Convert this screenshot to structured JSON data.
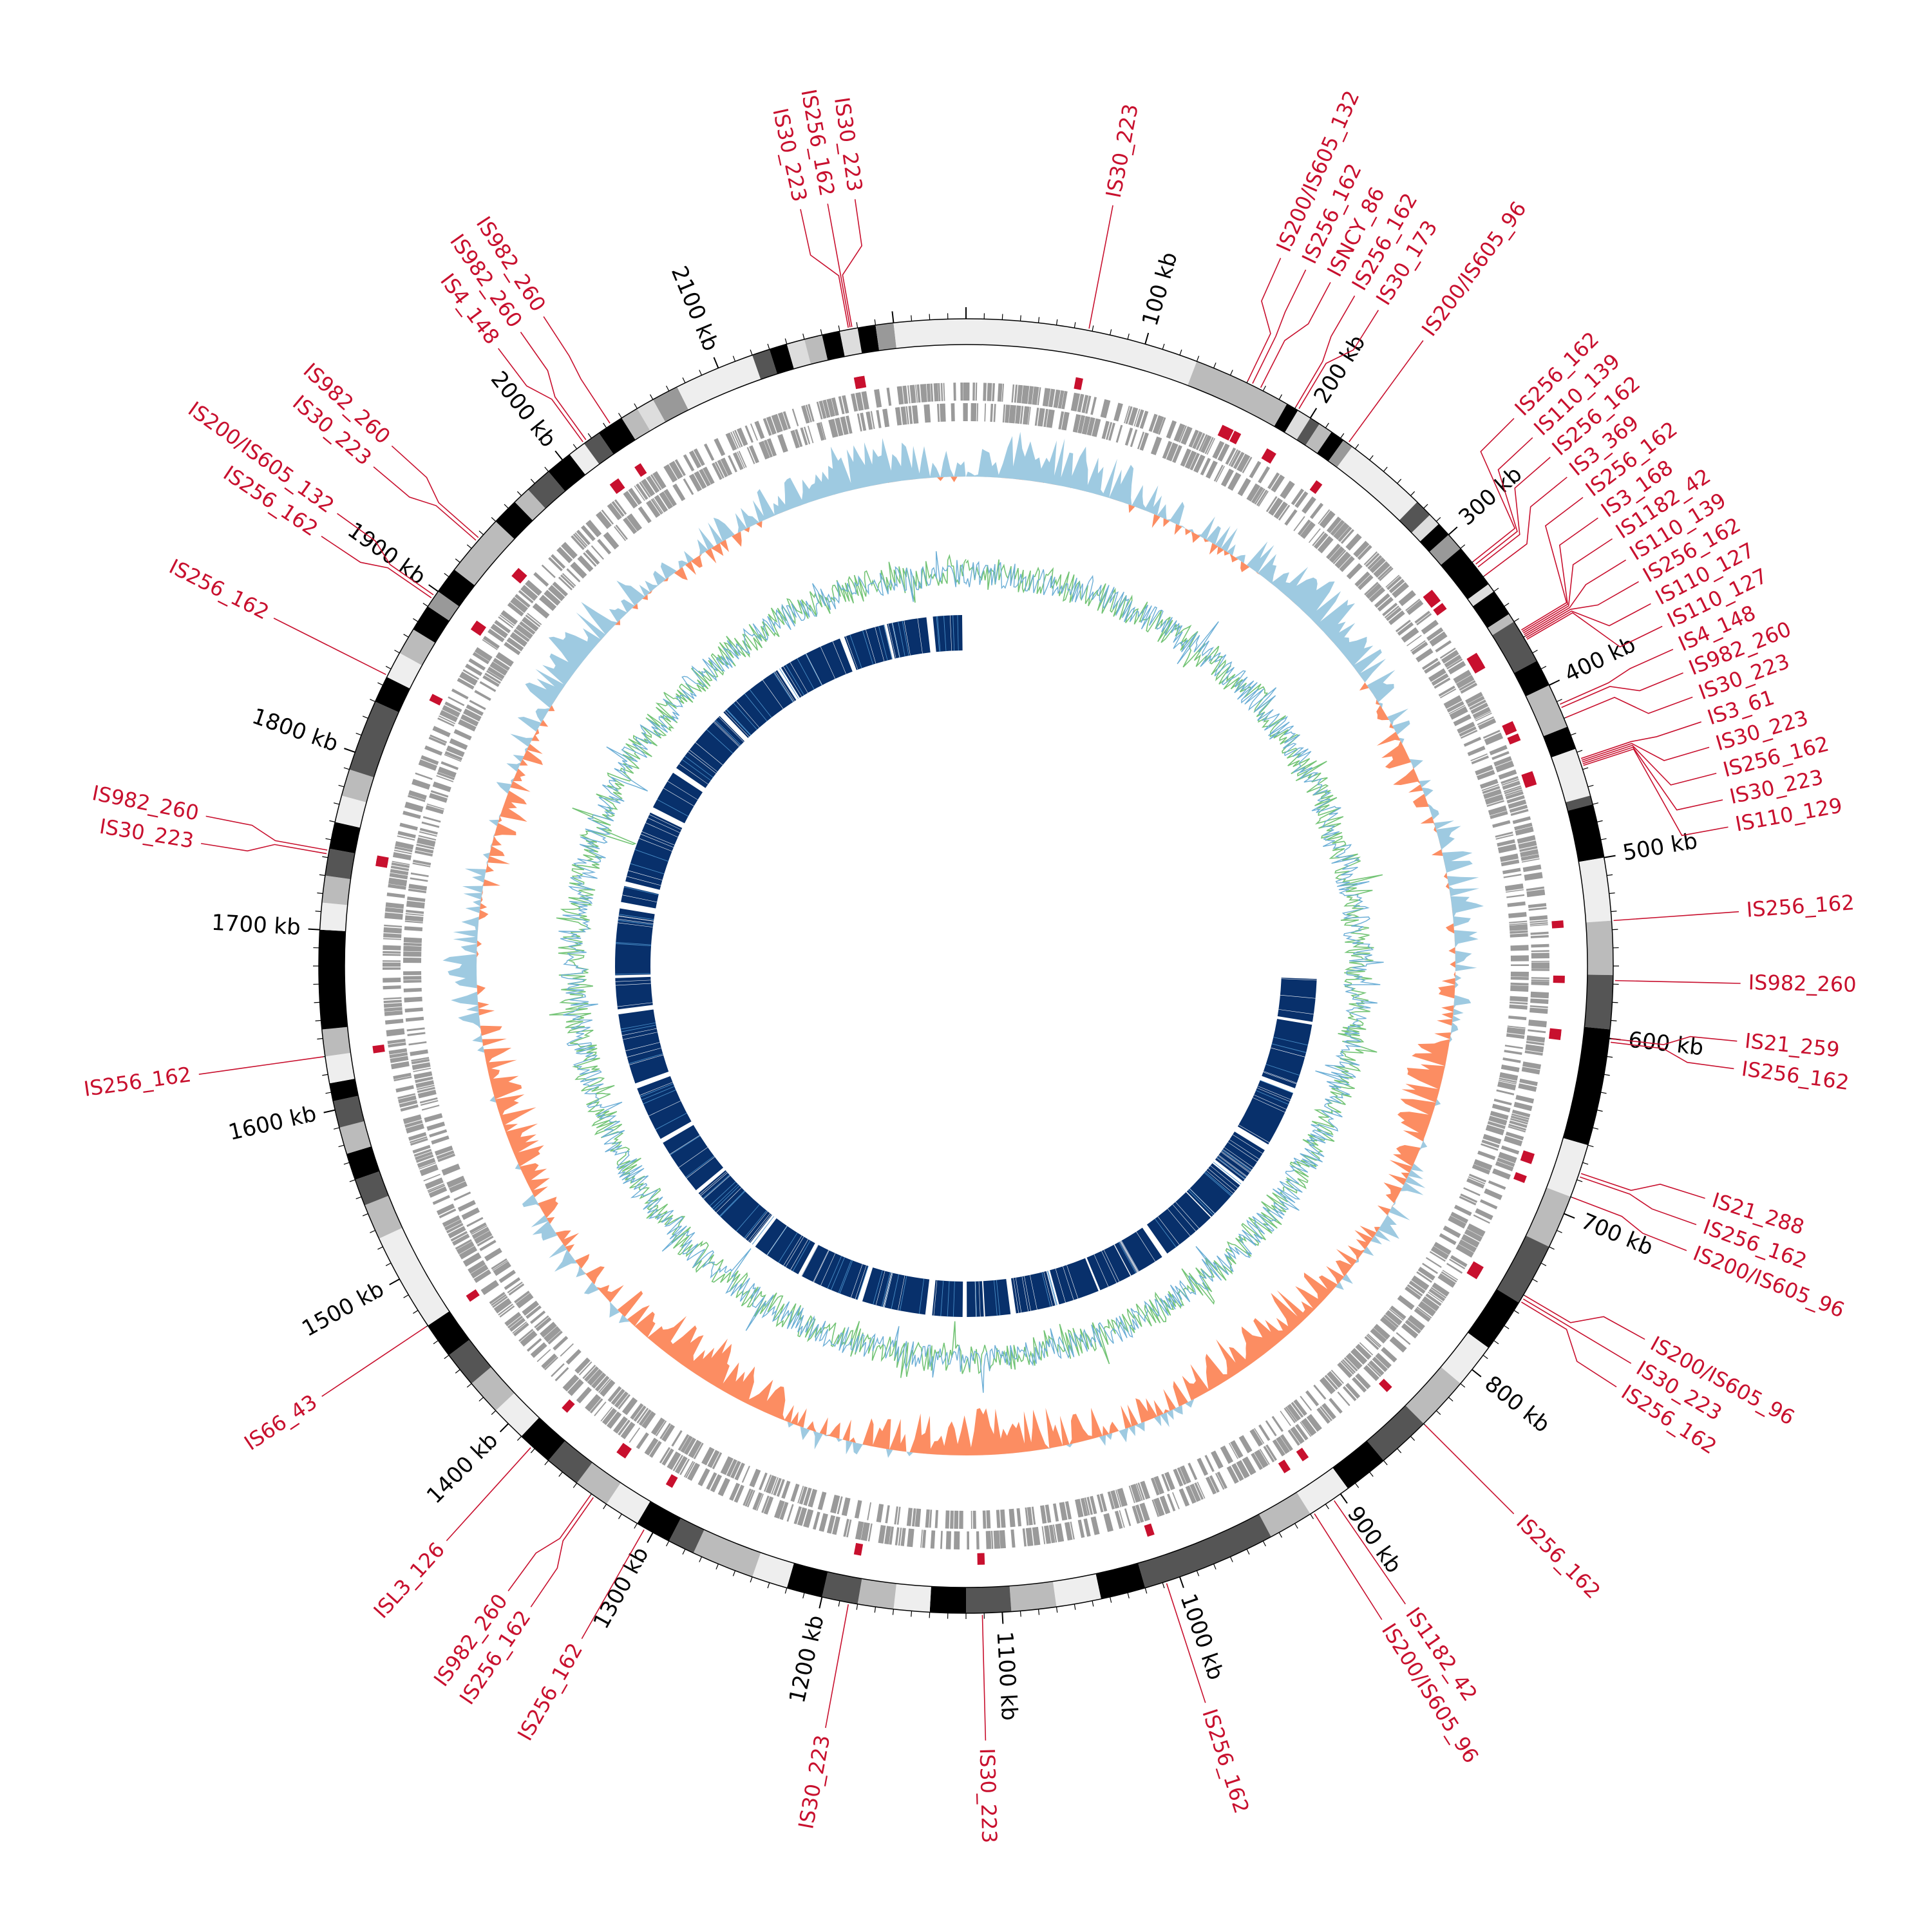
{
  "genome": {
    "length_kb": 2240,
    "ideogram_bands": [
      {
        "start": 0,
        "end": 130,
        "shade": "#eeeeee"
      },
      {
        "start": 130,
        "end": 185,
        "shade": "#bbbbbb"
      },
      {
        "start": 185,
        "end": 192,
        "shade": "#000000"
      },
      {
        "start": 192,
        "end": 200,
        "shade": "#dddddd"
      },
      {
        "start": 200,
        "end": 206,
        "shade": "#555555"
      },
      {
        "start": 206,
        "end": 214,
        "shade": "#bbbbbb"
      },
      {
        "start": 214,
        "end": 222,
        "shade": "#000000"
      },
      {
        "start": 222,
        "end": 228,
        "shade": "#999999"
      },
      {
        "start": 228,
        "end": 275,
        "shade": "#eeeeee"
      },
      {
        "start": 275,
        "end": 285,
        "shade": "#555555"
      },
      {
        "start": 285,
        "end": 292,
        "shade": "#dddddd"
      },
      {
        "start": 292,
        "end": 300,
        "shade": "#000000"
      },
      {
        "start": 300,
        "end": 310,
        "shade": "#999999"
      },
      {
        "start": 310,
        "end": 335,
        "shade": "#000000"
      },
      {
        "start": 335,
        "end": 340,
        "shade": "#dddddd"
      },
      {
        "start": 340,
        "end": 355,
        "shade": "#000000"
      },
      {
        "start": 355,
        "end": 360,
        "shade": "#bbbbbb"
      },
      {
        "start": 360,
        "end": 385,
        "shade": "#555555"
      },
      {
        "start": 385,
        "end": 400,
        "shade": "#000000"
      },
      {
        "start": 400,
        "end": 425,
        "shade": "#bbbbbb"
      },
      {
        "start": 425,
        "end": 438,
        "shade": "#000000"
      },
      {
        "start": 438,
        "end": 465,
        "shade": "#eeeeee"
      },
      {
        "start": 465,
        "end": 470,
        "shade": "#555555"
      },
      {
        "start": 470,
        "end": 500,
        "shade": "#000000"
      },
      {
        "start": 500,
        "end": 535,
        "shade": "#eeeeee"
      },
      {
        "start": 535,
        "end": 565,
        "shade": "#bbbbbb"
      },
      {
        "start": 565,
        "end": 595,
        "shade": "#555555"
      },
      {
        "start": 595,
        "end": 660,
        "shade": "#000000"
      },
      {
        "start": 660,
        "end": 690,
        "shade": "#eeeeee"
      },
      {
        "start": 690,
        "end": 720,
        "shade": "#bbbbbb"
      },
      {
        "start": 720,
        "end": 755,
        "shade": "#555555"
      },
      {
        "start": 755,
        "end": 785,
        "shade": "#000000"
      },
      {
        "start": 785,
        "end": 810,
        "shade": "#eeeeee"
      },
      {
        "start": 810,
        "end": 840,
        "shade": "#bbbbbb"
      },
      {
        "start": 840,
        "end": 870,
        "shade": "#555555"
      },
      {
        "start": 870,
        "end": 895,
        "shade": "#000000"
      },
      {
        "start": 895,
        "end": 920,
        "shade": "#eeeeee"
      },
      {
        "start": 920,
        "end": 945,
        "shade": "#bbbbbb"
      },
      {
        "start": 945,
        "end": 1020,
        "shade": "#555555"
      },
      {
        "start": 1020,
        "end": 1045,
        "shade": "#000000"
      },
      {
        "start": 1045,
        "end": 1070,
        "shade": "#eeeeee"
      },
      {
        "start": 1070,
        "end": 1095,
        "shade": "#bbbbbb"
      },
      {
        "start": 1095,
        "end": 1120,
        "shade": "#555555"
      },
      {
        "start": 1120,
        "end": 1140,
        "shade": "#000000"
      },
      {
        "start": 1140,
        "end": 1160,
        "shade": "#eeeeee"
      },
      {
        "start": 1160,
        "end": 1180,
        "shade": "#bbbbbb"
      },
      {
        "start": 1180,
        "end": 1200,
        "shade": "#555555"
      },
      {
        "start": 1200,
        "end": 1220,
        "shade": "#000000"
      },
      {
        "start": 1220,
        "end": 1240,
        "shade": "#eeeeee"
      },
      {
        "start": 1240,
        "end": 1275,
        "shade": "#bbbbbb"
      },
      {
        "start": 1275,
        "end": 1290,
        "shade": "#555555"
      },
      {
        "start": 1290,
        "end": 1310,
        "shade": "#000000"
      },
      {
        "start": 1310,
        "end": 1330,
        "shade": "#eeeeee"
      },
      {
        "start": 1330,
        "end": 1350,
        "shade": "#bbbbbb"
      },
      {
        "start": 1350,
        "end": 1370,
        "shade": "#555555"
      },
      {
        "start": 1370,
        "end": 1390,
        "shade": "#000000"
      },
      {
        "start": 1390,
        "end": 1410,
        "shade": "#eeeeee"
      },
      {
        "start": 1410,
        "end": 1430,
        "shade": "#bbbbbb"
      },
      {
        "start": 1430,
        "end": 1450,
        "shade": "#555555"
      },
      {
        "start": 1450,
        "end": 1470,
        "shade": "#000000"
      },
      {
        "start": 1470,
        "end": 1525,
        "shade": "#eeeeee"
      },
      {
        "start": 1525,
        "end": 1545,
        "shade": "#bbbbbb"
      },
      {
        "start": 1545,
        "end": 1560,
        "shade": "#555555"
      },
      {
        "start": 1560,
        "end": 1575,
        "shade": "#000000"
      },
      {
        "start": 1575,
        "end": 1590,
        "shade": "#bbbbbb"
      },
      {
        "start": 1590,
        "end": 1605,
        "shade": "#555555"
      },
      {
        "start": 1605,
        "end": 1615,
        "shade": "#000000"
      },
      {
        "start": 1615,
        "end": 1630,
        "shade": "#eeeeee"
      },
      {
        "start": 1630,
        "end": 1645,
        "shade": "#bbbbbb"
      },
      {
        "start": 1645,
        "end": 1700,
        "shade": "#000000"
      },
      {
        "start": 1700,
        "end": 1715,
        "shade": "#eeeeee"
      },
      {
        "start": 1715,
        "end": 1730,
        "shade": "#bbbbbb"
      },
      {
        "start": 1730,
        "end": 1745,
        "shade": "#555555"
      },
      {
        "start": 1745,
        "end": 1760,
        "shade": "#000000"
      },
      {
        "start": 1760,
        "end": 1775,
        "shade": "#eeeeee"
      },
      {
        "start": 1775,
        "end": 1790,
        "shade": "#bbbbbb"
      },
      {
        "start": 1790,
        "end": 1830,
        "shade": "#555555"
      },
      {
        "start": 1830,
        "end": 1845,
        "shade": "#000000"
      },
      {
        "start": 1845,
        "end": 1860,
        "shade": "#eeeeee"
      },
      {
        "start": 1860,
        "end": 1875,
        "shade": "#bbbbbb"
      },
      {
        "start": 1875,
        "end": 1890,
        "shade": "#000000"
      },
      {
        "start": 1890,
        "end": 1900,
        "shade": "#999999"
      },
      {
        "start": 1900,
        "end": 1915,
        "shade": "#000000"
      },
      {
        "start": 1915,
        "end": 1950,
        "shade": "#bbbbbb"
      },
      {
        "start": 1950,
        "end": 1965,
        "shade": "#000000"
      },
      {
        "start": 1965,
        "end": 1975,
        "shade": "#bbbbbb"
      },
      {
        "start": 1975,
        "end": 1990,
        "shade": "#555555"
      },
      {
        "start": 1990,
        "end": 2005,
        "shade": "#000000"
      },
      {
        "start": 2005,
        "end": 2015,
        "shade": "#eeeeee"
      },
      {
        "start": 2015,
        "end": 2025,
        "shade": "#555555"
      },
      {
        "start": 2025,
        "end": 2040,
        "shade": "#000000"
      },
      {
        "start": 2040,
        "end": 2050,
        "shade": "#bbbbbb"
      },
      {
        "start": 2050,
        "end": 2060,
        "shade": "#dddddd"
      },
      {
        "start": 2060,
        "end": 2075,
        "shade": "#999999"
      },
      {
        "start": 2075,
        "end": 2120,
        "shade": "#eeeeee"
      },
      {
        "start": 2120,
        "end": 2130,
        "shade": "#555555"
      },
      {
        "start": 2130,
        "end": 2140,
        "shade": "#000000"
      },
      {
        "start": 2140,
        "end": 2150,
        "shade": "#dddddd"
      },
      {
        "start": 2150,
        "end": 2160,
        "shade": "#bbbbbb"
      },
      {
        "start": 2160,
        "end": 2170,
        "shade": "#000000"
      },
      {
        "start": 2170,
        "end": 2180,
        "shade": "#dddddd"
      },
      {
        "start": 2180,
        "end": 2190,
        "shade": "#000000"
      },
      {
        "start": 2190,
        "end": 2200,
        "shade": "#999999"
      },
      {
        "start": 2200,
        "end": 2240,
        "shade": "#eeeeee"
      }
    ]
  },
  "scale_labels": [
    {
      "kb": 100,
      "text": "100 kb"
    },
    {
      "kb": 200,
      "text": "200 kb"
    },
    {
      "kb": 300,
      "text": "300 kb"
    },
    {
      "kb": 400,
      "text": "400 kb"
    },
    {
      "kb": 500,
      "text": "500 kb"
    },
    {
      "kb": 600,
      "text": "600 kb"
    },
    {
      "kb": 700,
      "text": "700 kb"
    },
    {
      "kb": 800,
      "text": "800 kb"
    },
    {
      "kb": 900,
      "text": "900 kb"
    },
    {
      "kb": 1000,
      "text": "1000 kb"
    },
    {
      "kb": 1100,
      "text": "1100 kb"
    },
    {
      "kb": 1200,
      "text": "1200 kb"
    },
    {
      "kb": 1300,
      "text": "1300 kb"
    },
    {
      "kb": 1400,
      "text": "1400 kb"
    },
    {
      "kb": 1500,
      "text": "1500 kb"
    },
    {
      "kb": 1600,
      "text": "1600 kb"
    },
    {
      "kb": 1700,
      "text": "1700 kb"
    },
    {
      "kb": 1800,
      "text": "1800 kb"
    },
    {
      "kb": 1900,
      "text": "1900 kb"
    },
    {
      "kb": 2000,
      "text": "2000 kb"
    },
    {
      "kb": 2100,
      "text": "2100 kb"
    }
  ],
  "insertion_sequences": [
    {
      "kb": 68,
      "label": "IS30_223"
    },
    {
      "kb": 160,
      "label": "IS200/IS605_132"
    },
    {
      "kb": 163,
      "label": "IS256_162"
    },
    {
      "kb": 168,
      "label": "ISNCY_86"
    },
    {
      "kb": 190,
      "label": "IS256_162"
    },
    {
      "kb": 192,
      "label": "IS30_173"
    },
    {
      "kb": 225,
      "label": "IS200/IS605_96"
    },
    {
      "kb": 320,
      "label": "IS256_162"
    },
    {
      "kb": 322,
      "label": "IS110_139"
    },
    {
      "kb": 324,
      "label": "IS256_162"
    },
    {
      "kb": 330,
      "label": "IS3_369"
    },
    {
      "kb": 366,
      "label": "IS256_162"
    },
    {
      "kb": 367,
      "label": "IS3_168"
    },
    {
      "kb": 368,
      "label": "IS1182_42"
    },
    {
      "kb": 369,
      "label": "IS110_139"
    },
    {
      "kb": 370,
      "label": "IS256_162"
    },
    {
      "kb": 371,
      "label": "IS110_127"
    },
    {
      "kb": 372,
      "label": "IS110_127"
    },
    {
      "kb": 412,
      "label": "IS4_148"
    },
    {
      "kb": 414,
      "label": "IS982_260"
    },
    {
      "kb": 420,
      "label": "IS30_223"
    },
    {
      "kb": 444,
      "label": "IS3_61"
    },
    {
      "kb": 445,
      "label": "IS30_223"
    },
    {
      "kb": 446,
      "label": "IS256_162"
    },
    {
      "kb": 447,
      "label": "IS30_223"
    },
    {
      "kb": 448,
      "label": "IS110_129"
    },
    {
      "kb": 535,
      "label": "IS256_162"
    },
    {
      "kb": 568,
      "label": "IS982_260"
    },
    {
      "kb": 600,
      "label": "IS21_259"
    },
    {
      "kb": 602,
      "label": "IS256_162"
    },
    {
      "kb": 676,
      "label": "IS21_288"
    },
    {
      "kb": 678,
      "label": "IS256_162"
    },
    {
      "kb": 690,
      "label": "IS200/IS605_96"
    },
    {
      "kb": 750,
      "label": "IS200/IS605_96"
    },
    {
      "kb": 752,
      "label": "IS30_223"
    },
    {
      "kb": 754,
      "label": "IS256_162"
    },
    {
      "kb": 840,
      "label": "IS256_162"
    },
    {
      "kb": 905,
      "label": "IS1182_42"
    },
    {
      "kb": 918,
      "label": "IS200/IS605_96"
    },
    {
      "kb": 1008,
      "label": "IS256_162"
    },
    {
      "kb": 1111,
      "label": "IS30_223"
    },
    {
      "kb": 1185,
      "label": "IS30_223"
    },
    {
      "kb": 1305,
      "label": "IS256_162"
    },
    {
      "kb": 1338,
      "label": "IS256_162"
    },
    {
      "kb": 1340,
      "label": "IS982_260"
    },
    {
      "kb": 1382,
      "label": "ISL3_126"
    },
    {
      "kb": 1470,
      "label": "IS66_43"
    },
    {
      "kb": 1630,
      "label": "IS256_162"
    },
    {
      "kb": 1742,
      "label": "IS30_223"
    },
    {
      "kb": 1744,
      "label": "IS982_260"
    },
    {
      "kb": 1846,
      "label": "IS256_162"
    },
    {
      "kb": 1895,
      "label": "IS256_162"
    },
    {
      "kb": 1897,
      "label": "IS200/IS605_132"
    },
    {
      "kb": 1935,
      "label": "IS30_223"
    },
    {
      "kb": 1937,
      "label": "IS982_260"
    },
    {
      "kb": 2015,
      "label": "IS4_148"
    },
    {
      "kb": 2017,
      "label": "IS982_260"
    },
    {
      "kb": 2033,
      "label": "IS982_260"
    },
    {
      "kb": 2175,
      "label": "IS30_223"
    },
    {
      "kb": 2176,
      "label": "IS256_162"
    },
    {
      "kb": 2177,
      "label": "IS30_223"
    }
  ],
  "colors": {
    "is_label": "#c8102e",
    "axis": "#000000",
    "gene_track": "#9a9a9a",
    "gc_skew_positive": "#9ecae1",
    "gc_skew_negative": "#fc8d62",
    "gc_content_blue": "#6baed6",
    "gc_content_green": "#74c476",
    "inner_blocks": "#08306b",
    "inner_blocks_light": "#4a90c9",
    "white": "#ffffff"
  }
}
